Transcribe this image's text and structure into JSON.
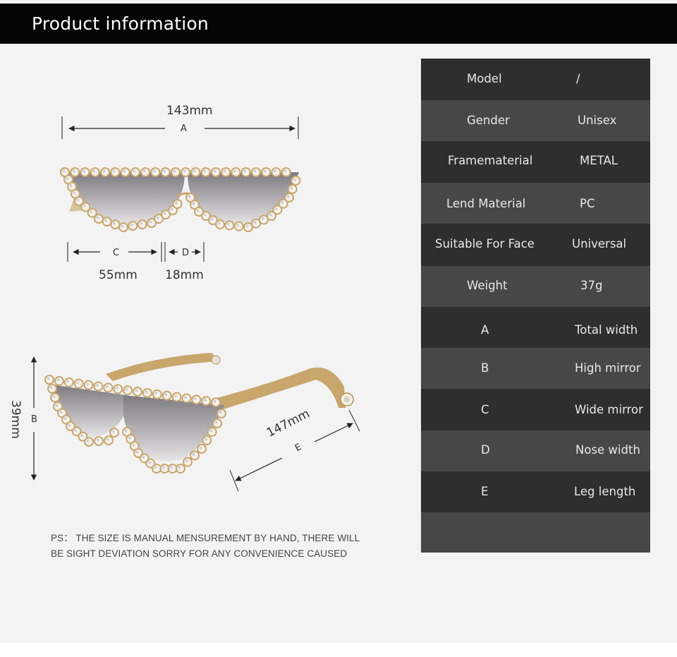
{
  "header": {
    "title": "Product information"
  },
  "front_view": {
    "total_width": {
      "value": "143mm",
      "letter": "A"
    },
    "lens_width": {
      "value": "55mm",
      "letter": "C"
    },
    "nose_width": {
      "value": "18mm",
      "letter": "D"
    }
  },
  "side_view": {
    "height": {
      "value": "39mm",
      "letter": "B"
    },
    "leg_length": {
      "value": "147mm",
      "letter": "E"
    }
  },
  "note": {
    "line1": "PS： THE SIZE IS MANUAL MENSUREMENT BY HAND, THERE WILL",
    "line2": "BE SIGHT DEVIATION SORRY FOR ANY CONVENIENCE CAUSED"
  },
  "specs": [
    {
      "label": "Model",
      "value": "/"
    },
    {
      "label": "Gender",
      "value": "Unisex"
    },
    {
      "label": "Framematerial",
      "value": "METAL"
    },
    {
      "label": "Lend Material",
      "value": "PC"
    },
    {
      "label": "Suitable For Face",
      "value": "Universal"
    },
    {
      "label": "Weight",
      "value": "37g"
    },
    {
      "label": "A",
      "value": "Total width"
    },
    {
      "label": "B",
      "value": "High mirror"
    },
    {
      "label": "C",
      "value": "Wide mirror"
    },
    {
      "label": "D",
      "value": "Nose width"
    },
    {
      "label": "E",
      "value": "Leg length"
    },
    {
      "label": "",
      "value": ""
    }
  ],
  "colors": {
    "header_bg": "#050505",
    "row_dark": "#2e2e2e",
    "row_light": "#474747",
    "frame_gold": "#c9a66b",
    "lens_gray": "#8e8c90"
  }
}
